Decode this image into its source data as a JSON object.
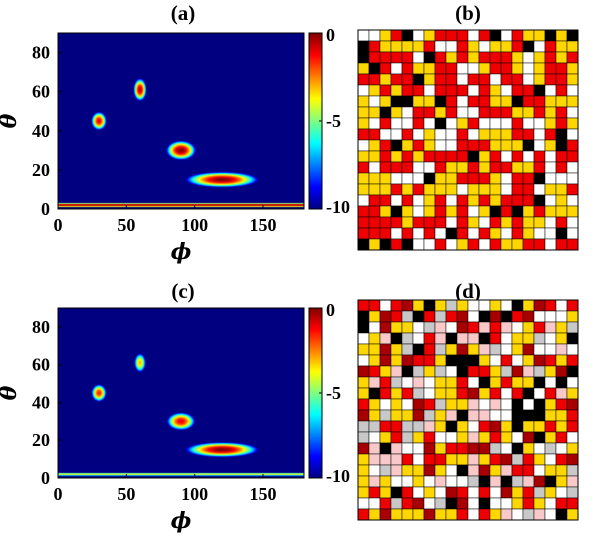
{
  "panels": {
    "a": "(a)",
    "b": "(b)",
    "c": "(c)",
    "d": "(d)"
  },
  "chart_data": [
    {
      "type": "heatmap",
      "panel": "(a)",
      "xlabel": "ϕ",
      "ylabel": "θ",
      "xlim": [
        0,
        180
      ],
      "ylim": [
        0,
        90
      ],
      "xticks": [
        "0",
        "50",
        "100",
        "150"
      ],
      "xtick_values": [
        0,
        50,
        100,
        150
      ],
      "yticks": [
        "0",
        "20",
        "40",
        "60",
        "80"
      ],
      "ytick_values": [
        0,
        20,
        40,
        60,
        80
      ],
      "colorbar": {
        "min": -10,
        "max": 0,
        "ticks": [
          "0",
          "-5",
          "-10"
        ],
        "tick_values": [
          0,
          -5,
          -10
        ],
        "colormap": "jet"
      },
      "peaks": [
        {
          "phi": 30,
          "theta": 45,
          "value": -1
        },
        {
          "phi": 60,
          "theta": 61,
          "value": -0.5
        },
        {
          "phi": 90,
          "theta": 30,
          "value": 0
        },
        {
          "phi": 120,
          "theta": 15,
          "value": 0
        }
      ],
      "band": {
        "theta": 2,
        "value": -0.3
      }
    },
    {
      "type": "grid",
      "panel": "(b)",
      "rows": 20,
      "cols": 20,
      "colors": {
        "white": "#ffffff",
        "yellow": "#ffd700",
        "red": "#ee0000",
        "black": "#000000"
      }
    },
    {
      "type": "heatmap",
      "panel": "(c)",
      "xlabel": "ϕ",
      "ylabel": "θ",
      "xlim": [
        0,
        180
      ],
      "ylim": [
        0,
        90
      ],
      "xticks": [
        "0",
        "50",
        "100",
        "150"
      ],
      "xtick_values": [
        0,
        50,
        100,
        150
      ],
      "yticks": [
        "0",
        "20",
        "40",
        "60",
        "80"
      ],
      "ytick_values": [
        0,
        20,
        40,
        60,
        80
      ],
      "colorbar": {
        "min": -10,
        "max": 0,
        "ticks": [
          "0",
          "-5",
          "-10"
        ],
        "tick_values": [
          0,
          -5,
          -10
        ],
        "colormap": "jet"
      },
      "peaks": [
        {
          "phi": 30,
          "theta": 45,
          "value": -1.5
        },
        {
          "phi": 60,
          "theta": 61,
          "value": -3
        },
        {
          "phi": 90,
          "theta": 30,
          "value": -1
        },
        {
          "phi": 120,
          "theta": 15,
          "value": 0
        }
      ],
      "band": {
        "theta": 2,
        "value": -4
      }
    },
    {
      "type": "grid",
      "panel": "(d)",
      "rows": 20,
      "cols": 20,
      "colors": {
        "white": "#ffffff",
        "yellow": "#ffd700",
        "red": "#ee0000",
        "black": "#000000",
        "gray": "#c8c8c8",
        "pink": "#f9c8c8",
        "darkred": "#a80000"
      }
    }
  ]
}
